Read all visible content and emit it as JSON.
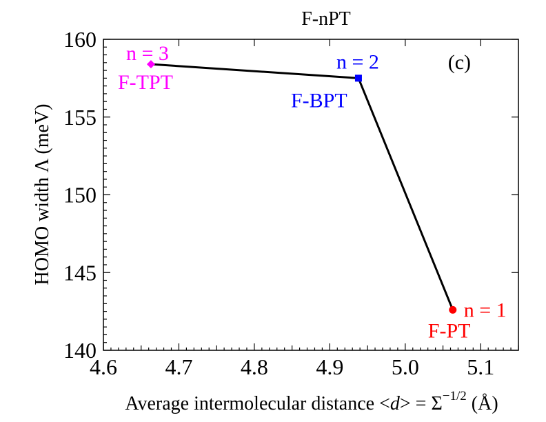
{
  "chart_data": {
    "type": "line",
    "title": "F-nPT",
    "panel_label": "(c)",
    "xlabel": {
      "prefix": "Average intermolecular distance <",
      "italic": "d",
      "middle": "> = Σ",
      "exponent": "−1/2",
      "suffix": " (Å)"
    },
    "ylabel": "HOMO width Λ (meV)",
    "xlim": [
      4.6,
      5.15
    ],
    "ylim": [
      140,
      160
    ],
    "xticks": [
      4.6,
      4.7,
      4.8,
      4.9,
      5.0,
      5.1
    ],
    "xtick_labels": [
      "4.6",
      "4.7",
      "4.8",
      "4.9",
      "5.0",
      "5.1"
    ],
    "yticks": [
      140,
      145,
      150,
      155,
      160
    ],
    "ytick_labels": [
      "140",
      "145",
      "150",
      "155",
      "160"
    ],
    "grid": false,
    "series": [
      {
        "name": "F-nPT",
        "color": "#000000",
        "points": [
          {
            "x": 4.663,
            "y": 158.4,
            "n_label": "n = 3",
            "mol_label": "F-TPT",
            "color": "#ff00ff",
            "marker": "diamond"
          },
          {
            "x": 4.938,
            "y": 157.5,
            "n_label": "n = 2",
            "mol_label": "F-BPT",
            "color": "#0000ff",
            "marker": "square"
          },
          {
            "x": 5.063,
            "y": 142.6,
            "n_label": "n = 1",
            "mol_label": "F-PT",
            "color": "#ff0000",
            "marker": "circle"
          }
        ]
      }
    ]
  }
}
